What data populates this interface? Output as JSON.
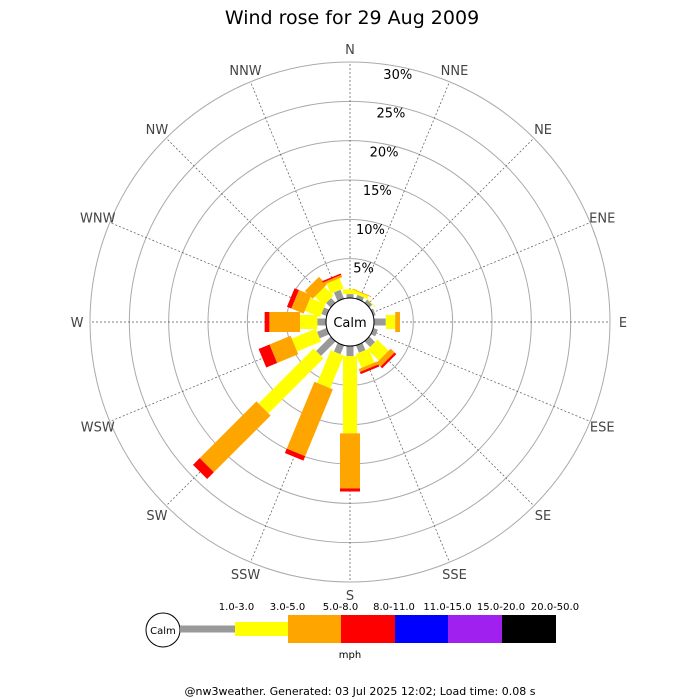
{
  "chart_data": {
    "type": "wind-rose",
    "title": "Wind rose for 29 Aug 2009",
    "directions": [
      "N",
      "NNE",
      "NE",
      "ENE",
      "E",
      "ESE",
      "SE",
      "SSE",
      "S",
      "SSW",
      "SW",
      "WSW",
      "W",
      "WNW",
      "NW",
      "NNW"
    ],
    "radial_ticks": [
      "5%",
      "10%",
      "15%",
      "20%",
      "25%",
      "30%"
    ],
    "radial_tick_values": [
      5,
      10,
      15,
      20,
      25,
      30
    ],
    "center_label": "Calm",
    "legend": {
      "calm_label": "Calm",
      "unit": "mph",
      "bins": [
        {
          "label": "1.0-3.0",
          "color": "#999999"
        },
        {
          "label": "3.0-5.0",
          "color": "#ffff00"
        },
        {
          "label": "5.0-8.0",
          "color": "#ffa500"
        },
        {
          "label": "8.0-11.0",
          "color": "#ff0000"
        },
        {
          "label": "11.0-15.0",
          "color": "#0000ff"
        },
        {
          "label": "15.0-20.0",
          "color": "#a020f0"
        },
        {
          "label": "20.0-50.0",
          "color": "#000000"
        }
      ]
    },
    "series": [
      {
        "direction": "N",
        "cumulative_pct": [
          0.5,
          1.1,
          1.1,
          1.1,
          1.1,
          1.1,
          1.1
        ]
      },
      {
        "direction": "NNE",
        "cumulative_pct": [
          0.5,
          0.9,
          1.0,
          1.0,
          1.0,
          1.0,
          1.0
        ]
      },
      {
        "direction": "NE",
        "cumulative_pct": [
          0.5,
          0.6,
          0.6,
          0.6,
          0.6,
          0.6,
          0.6
        ]
      },
      {
        "direction": "ENE",
        "cumulative_pct": [
          0.3,
          0.3,
          0.3,
          0.3,
          0.3,
          0.3,
          0.3
        ]
      },
      {
        "direction": "E",
        "cumulative_pct": [
          1.5,
          2.7,
          3.3,
          3.3,
          3.3,
          3.3,
          3.3
        ]
      },
      {
        "direction": "ESE",
        "cumulative_pct": [
          0.6,
          0.6,
          0.6,
          0.6,
          0.6,
          0.6,
          0.6
        ]
      },
      {
        "direction": "SE",
        "cumulative_pct": [
          1.0,
          3.0,
          3.7,
          4.0,
          4.0,
          4.0,
          4.0
        ]
      },
      {
        "direction": "SSE",
        "cumulative_pct": [
          1.0,
          2.9,
          3.3,
          3.6,
          3.6,
          3.6,
          3.6
        ]
      },
      {
        "direction": "S",
        "cumulative_pct": [
          1.3,
          11.1,
          18.1,
          18.5,
          18.5,
          18.5,
          18.5
        ]
      },
      {
        "direction": "SSW",
        "cumulative_pct": [
          1.2,
          5.7,
          14.9,
          15.5,
          15.5,
          15.5,
          15.5
        ]
      },
      {
        "direction": "SW",
        "cumulative_pct": [
          2.6,
          12.5,
          22.7,
          23.9,
          23.9,
          23.9,
          23.9
        ]
      },
      {
        "direction": "WSW",
        "cumulative_pct": [
          1.3,
          4.6,
          7.5,
          9.0,
          9.0,
          9.0,
          9.0
        ]
      },
      {
        "direction": "W",
        "cumulative_pct": [
          1.1,
          3.3,
          7.2,
          7.8,
          7.8,
          7.8,
          7.8
        ]
      },
      {
        "direction": "WNW",
        "cumulative_pct": [
          0.7,
          2.8,
          4.5,
          5.1,
          5.1,
          5.1,
          5.1
        ]
      },
      {
        "direction": "NW",
        "cumulative_pct": [
          0.8,
          2.4,
          3.8,
          3.8,
          3.8,
          3.8,
          3.8
        ]
      },
      {
        "direction": "NNW",
        "cumulative_pct": [
          1.2,
          2.6,
          2.9,
          3.1,
          3.1,
          3.1,
          3.1
        ]
      }
    ],
    "rlim": [
      0,
      30
    ]
  },
  "footer": "@nw3weather. Generated: 03 Jul 2025 12:02; Load time: 0.08 s"
}
